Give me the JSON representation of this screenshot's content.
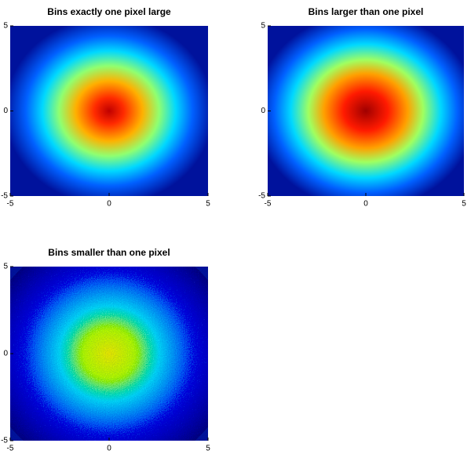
{
  "chart_data": [
    {
      "type": "heatmap",
      "title": "Bins exactly one pixel large",
      "xlim": [
        -5,
        5
      ],
      "ylim": [
        -5,
        5
      ],
      "xticks": [
        -5,
        0,
        5
      ],
      "yticks": [
        -5,
        0,
        5
      ]
    },
    {
      "type": "heatmap",
      "title": "Bins larger than one pixel",
      "xlim": [
        -5,
        5
      ],
      "ylim": [
        -5,
        5
      ],
      "xticks": [
        -5,
        0,
        5
      ],
      "yticks": [
        -5,
        0,
        5
      ]
    },
    {
      "type": "heatmap",
      "title": "Bins smaller than one pixel",
      "xlim": [
        -5,
        5
      ],
      "ylim": [
        -5,
        5
      ],
      "xticks": [
        -5,
        0,
        5
      ],
      "yticks": [
        -5,
        0,
        5
      ]
    }
  ]
}
